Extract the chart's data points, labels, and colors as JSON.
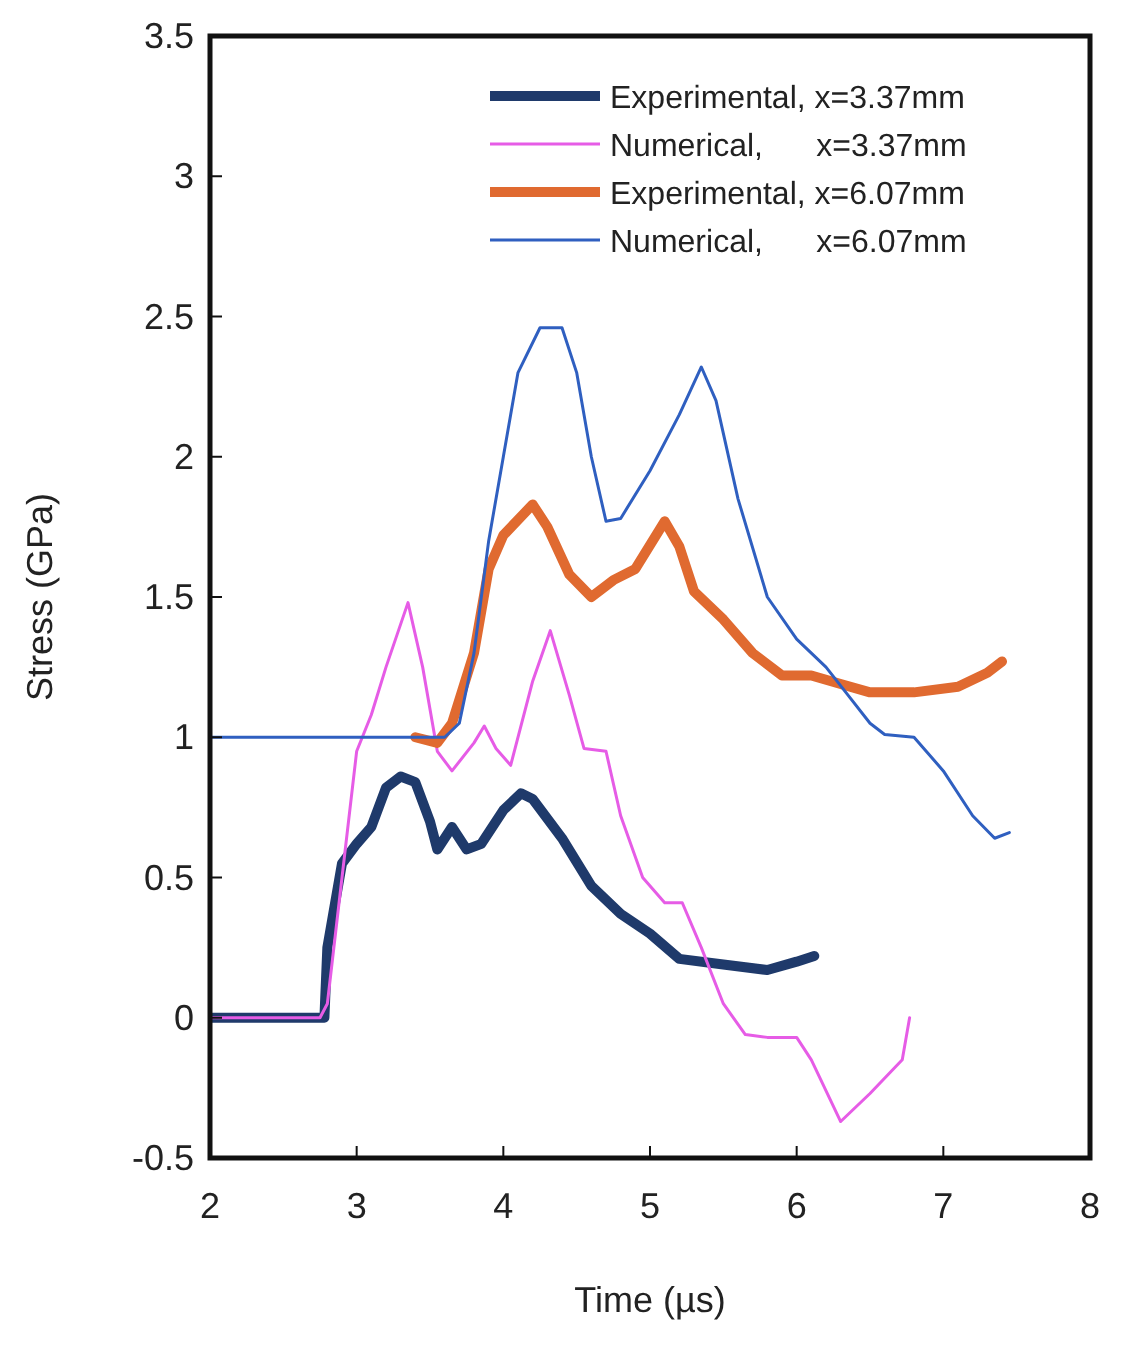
{
  "chart_data": {
    "type": "line",
    "xlabel": "Time  (µs)",
    "ylabel": "Stress  (GPa)",
    "xlim": [
      2,
      8
    ],
    "ylim": [
      -0.5,
      3.5
    ],
    "xticks": [
      2,
      3,
      4,
      5,
      6,
      7,
      8
    ],
    "yticks": [
      -0.5,
      0,
      0.5,
      1,
      1.5,
      2,
      2.5,
      3,
      3.5
    ],
    "grid": false,
    "legend": "top right",
    "line_style": "solid",
    "marker": "none",
    "series": [
      {
        "name": "Experimental, x=3.37mm",
        "color": "#1f3a6b",
        "x": [
          2,
          2.78,
          2.8,
          2.9,
          3.0,
          3.1,
          3.2,
          3.3,
          3.4,
          3.5,
          3.55,
          3.65,
          3.75,
          3.85,
          4.0,
          4.12,
          4.2,
          4.4,
          4.6,
          4.8,
          5.0,
          5.2,
          5.5,
          5.8,
          6.0,
          6.12
        ],
        "values": [
          0,
          0,
          0.25,
          0.55,
          0.62,
          0.68,
          0.82,
          0.86,
          0.84,
          0.7,
          0.6,
          0.68,
          0.6,
          0.62,
          0.74,
          0.8,
          0.78,
          0.64,
          0.47,
          0.37,
          0.3,
          0.21,
          0.19,
          0.17,
          0.2,
          0.22
        ]
      },
      {
        "name": "Numerical,      x=3.37mm",
        "color": "#e65ce6",
        "x": [
          2,
          2.75,
          2.8,
          2.9,
          3.0,
          3.1,
          3.2,
          3.35,
          3.45,
          3.55,
          3.65,
          3.8,
          3.87,
          3.95,
          4.05,
          4.2,
          4.32,
          4.45,
          4.55,
          4.7,
          4.8,
          4.95,
          5.1,
          5.22,
          5.35,
          5.5,
          5.65,
          5.8,
          6.0,
          6.1,
          6.3,
          6.5,
          6.72,
          6.77
        ],
        "values": [
          0,
          0,
          0.05,
          0.5,
          0.95,
          1.08,
          1.25,
          1.48,
          1.25,
          0.95,
          0.88,
          0.98,
          1.04,
          0.96,
          0.9,
          1.2,
          1.38,
          1.15,
          0.96,
          0.95,
          0.72,
          0.5,
          0.41,
          0.41,
          0.25,
          0.05,
          -0.06,
          -0.07,
          -0.07,
          -0.15,
          -0.37,
          -0.27,
          -0.15,
          0
        ]
      },
      {
        "name": "Experimental, x=6.07mm",
        "color": "#e06a30",
        "x": [
          3.4,
          3.55,
          3.65,
          3.8,
          3.9,
          4.0,
          4.2,
          4.3,
          4.45,
          4.6,
          4.75,
          4.9,
          5.1,
          5.2,
          5.3,
          5.5,
          5.7,
          5.9,
          6.1,
          6.3,
          6.5,
          6.8,
          7.1,
          7.3,
          7.4
        ],
        "values": [
          1.0,
          0.98,
          1.05,
          1.3,
          1.6,
          1.72,
          1.83,
          1.75,
          1.58,
          1.5,
          1.56,
          1.6,
          1.77,
          1.68,
          1.52,
          1.42,
          1.3,
          1.22,
          1.22,
          1.19,
          1.16,
          1.16,
          1.18,
          1.23,
          1.27
        ]
      },
      {
        "name": "Numerical,      x=6.07mm",
        "color": "#2f5fc0",
        "x": [
          2,
          3.6,
          3.7,
          3.8,
          3.9,
          4.0,
          4.1,
          4.25,
          4.4,
          4.5,
          4.6,
          4.7,
          4.8,
          5.0,
          5.2,
          5.35,
          5.45,
          5.6,
          5.8,
          6.0,
          6.2,
          6.35,
          6.5,
          6.6,
          6.8,
          7.0,
          7.2,
          7.35,
          7.45
        ],
        "values": [
          1.0,
          1.0,
          1.05,
          1.3,
          1.7,
          2.0,
          2.3,
          2.46,
          2.46,
          2.3,
          2.0,
          1.77,
          1.78,
          1.95,
          2.15,
          2.32,
          2.2,
          1.85,
          1.5,
          1.35,
          1.25,
          1.15,
          1.05,
          1.01,
          1.0,
          0.88,
          0.72,
          0.64,
          0.66
        ]
      }
    ]
  }
}
